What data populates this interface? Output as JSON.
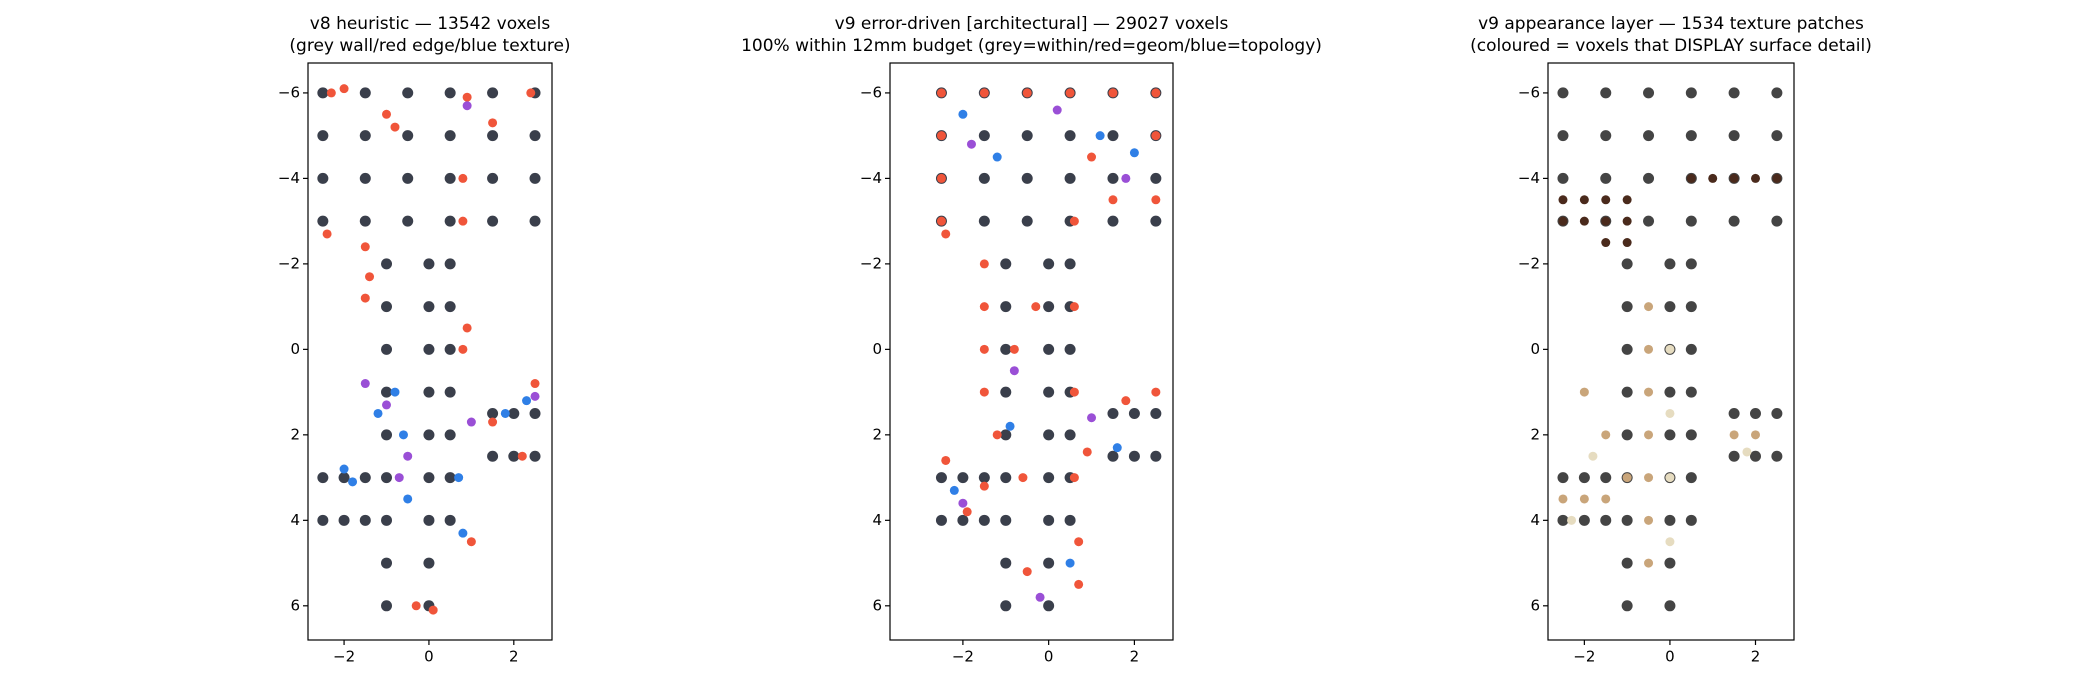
{
  "chart_data": [
    {
      "type": "scatter",
      "title": "v8 heuristic — 13542 voxels",
      "subtitle": "(grey wall/red edge/blue texture)",
      "xlim": [
        -2.85,
        2.9
      ],
      "ylim": [
        -6.7,
        6.8
      ],
      "y_inverted": true,
      "xticks": [
        {
          "value": -2,
          "label": "−2"
        },
        0,
        2
      ],
      "yticks": [
        {
          "value": -6,
          "label": "−6"
        },
        {
          "value": -4,
          "label": "−4"
        },
        {
          "value": -2,
          "label": "−2"
        },
        0,
        2,
        4,
        6
      ],
      "series": [
        {
          "color": "#3a3f4b",
          "x": [
            -2.5,
            -1.5,
            -0.5,
            0.5,
            1.5,
            2.5,
            -2.5,
            -1.5,
            -0.5,
            0.5,
            1.5,
            2.5,
            -2.5,
            -1.5,
            -0.5,
            0.5,
            1.5,
            2.5,
            -2.5,
            -1.5,
            -0.5,
            0.5,
            1.5,
            2.5,
            -1,
            -1,
            -1,
            -1,
            -1,
            -1,
            -1,
            -1,
            -1,
            0,
            0,
            0,
            0,
            0,
            0,
            0,
            0,
            0,
            0.5,
            0.5,
            0.5,
            0.5,
            0.5,
            0.5,
            0.5,
            -2.5,
            -2,
            -1.5,
            -2.5,
            -2,
            -1.5,
            1.5,
            2,
            2.5,
            1.5,
            2,
            2.5
          ],
          "y": [
            -6,
            -6,
            -6,
            -6,
            -6,
            -6,
            -5,
            -5,
            -5,
            -5,
            -5,
            -5,
            -4,
            -4,
            -4,
            -4,
            -4,
            -4,
            -3,
            -3,
            -3,
            -3,
            -3,
            -3,
            -2,
            -1,
            0,
            1,
            2,
            3,
            4,
            5,
            6,
            -2,
            -1,
            0,
            1,
            2,
            3,
            4,
            5,
            6,
            -2,
            -1,
            0,
            1,
            2,
            3,
            4,
            3,
            3,
            3,
            4,
            4,
            4,
            1.5,
            1.5,
            1.5,
            2.5,
            2.5,
            2.5
          ]
        },
        {
          "color": "#f0553a",
          "x": [
            -2.3,
            -2,
            -1,
            -0.8,
            0.9,
            1.5,
            2.4,
            0.8,
            0.8,
            -2.4,
            -1.5,
            -1.4,
            -1.5,
            0.8,
            0.9,
            1.5,
            2.5,
            2.2,
            1,
            -0.3,
            0.1
          ],
          "y": [
            -6,
            -6.1,
            -5.5,
            -5.2,
            -5.9,
            -5.3,
            -6,
            -4,
            -3,
            -2.7,
            -2.4,
            -1.7,
            -1.2,
            0,
            -0.5,
            1.7,
            0.8,
            2.5,
            4.5,
            6,
            6.1
          ]
        },
        {
          "color": "#2f7fe6",
          "x": [
            -2,
            -1.8,
            -0.8,
            -0.6,
            -0.5,
            0.7,
            0.8,
            2.3,
            -1.2,
            1.8
          ],
          "y": [
            2.8,
            3.1,
            1,
            2,
            3.5,
            3,
            4.3,
            1.2,
            1.5,
            1.5
          ]
        },
        {
          "color": "#9a4fd6",
          "x": [
            -0.5,
            -0.7,
            -1,
            0.9,
            1,
            2.5,
            -1.5
          ],
          "y": [
            2.5,
            3,
            1.3,
            -5.7,
            1.7,
            1.1,
            0.8
          ]
        }
      ]
    },
    {
      "type": "scatter",
      "title": "v9 error-driven [architectural] — 29027 voxels",
      "subtitle": "100% within 12mm budget (grey=within/red=geom/blue=topology)",
      "xlim": [
        -3.7,
        2.9
      ],
      "ylim": [
        -6.7,
        6.8
      ],
      "y_inverted": true,
      "xticks": [
        {
          "value": -2,
          "label": "−2"
        },
        0,
        2
      ],
      "yticks": [
        {
          "value": -6,
          "label": "−6"
        },
        {
          "value": -4,
          "label": "−4"
        },
        {
          "value": -2,
          "label": "−2"
        },
        0,
        2,
        4,
        6
      ],
      "series": [
        {
          "color": "#3a3f4b",
          "x": [
            -2.5,
            -1.5,
            -0.5,
            0.5,
            1.5,
            2.5,
            -2.5,
            -1.5,
            -0.5,
            0.5,
            1.5,
            2.5,
            -2.5,
            -1.5,
            -0.5,
            0.5,
            1.5,
            2.5,
            -2.5,
            -1.5,
            -0.5,
            0.5,
            1.5,
            2.5,
            -1,
            -1,
            -1,
            -1,
            -1,
            -1,
            -1,
            -1,
            -1,
            0,
            0,
            0,
            0,
            0,
            0,
            0,
            0,
            0,
            0.5,
            0.5,
            0.5,
            0.5,
            0.5,
            0.5,
            0.5,
            -2.5,
            -2,
            -1.5,
            -2.5,
            -2,
            -1.5,
            1.5,
            2,
            2.5,
            1.5,
            2,
            2.5
          ],
          "y": [
            -6,
            -6,
            -6,
            -6,
            -6,
            -6,
            -5,
            -5,
            -5,
            -5,
            -5,
            -5,
            -4,
            -4,
            -4,
            -4,
            -4,
            -4,
            -3,
            -3,
            -3,
            -3,
            -3,
            -3,
            -2,
            -1,
            0,
            1,
            2,
            3,
            4,
            5,
            6,
            -2,
            -1,
            0,
            1,
            2,
            3,
            4,
            5,
            6,
            -2,
            -1,
            0,
            1,
            2,
            3,
            4,
            3,
            3,
            3,
            4,
            4,
            4,
            1.5,
            1.5,
            1.5,
            2.5,
            2.5,
            2.5
          ]
        },
        {
          "color": "#f0553a",
          "x": [
            -2.5,
            -1.5,
            -0.5,
            0.5,
            1.5,
            2.5,
            -2.5,
            -2.5,
            -2.5,
            -2.4,
            -1.5,
            -1.5,
            -1.5,
            -1.5,
            -1.2,
            -0.6,
            0.6,
            0.6,
            0.6,
            0.6,
            0.7,
            0.7,
            1.5,
            2.5,
            2.5,
            1,
            1.8,
            2.5,
            -2.4,
            -1.9,
            -1.5,
            -0.8,
            -0.3,
            0.9,
            -0.5
          ],
          "y": [
            -6,
            -6,
            -6,
            -6,
            -6,
            -6,
            -5,
            -4,
            -3,
            -2.7,
            -2,
            -1,
            0,
            1,
            2,
            3,
            -3,
            -1,
            1,
            3,
            4.5,
            5.5,
            -3.5,
            -3.5,
            -5,
            -4.5,
            1.2,
            1,
            2.6,
            3.8,
            3.2,
            0,
            -1,
            2.4,
            5.2
          ]
        },
        {
          "color": "#2f7fe6",
          "x": [
            -2,
            -1.2,
            1.2,
            2,
            -0.9,
            0.5,
            -2.2,
            1.6
          ],
          "y": [
            -5.5,
            -4.5,
            -5,
            -4.6,
            1.8,
            5,
            3.3,
            2.3
          ]
        },
        {
          "color": "#9a4fd6",
          "x": [
            -1.8,
            0.2,
            1.8,
            -0.8,
            -2,
            -0.2,
            1
          ],
          "y": [
            -4.8,
            -5.6,
            -4,
            0.5,
            3.6,
            5.8,
            1.6
          ]
        }
      ]
    },
    {
      "type": "scatter",
      "title": "v9 appearance layer — 1534 texture patches",
      "subtitle": "(coloured = voxels that DISPLAY surface detail)",
      "xlim": [
        -2.85,
        2.9
      ],
      "ylim": [
        -6.7,
        6.8
      ],
      "y_inverted": true,
      "xticks": [
        {
          "value": -2,
          "label": "−2"
        },
        0,
        2
      ],
      "yticks": [
        {
          "value": -6,
          "label": "−6"
        },
        {
          "value": -4,
          "label": "−4"
        },
        {
          "value": -2,
          "label": "−2"
        },
        0,
        2,
        4,
        6
      ],
      "series": [
        {
          "color": "#444444",
          "x": [
            -2.5,
            -1.5,
            -0.5,
            0.5,
            1.5,
            2.5,
            -2.5,
            -1.5,
            -0.5,
            0.5,
            1.5,
            2.5,
            -2.5,
            -1.5,
            -0.5,
            0.5,
            1.5,
            2.5,
            -2.5,
            -1.5,
            -0.5,
            0.5,
            1.5,
            2.5,
            -1,
            -1,
            -1,
            -1,
            -1,
            -1,
            -1,
            -1,
            -1,
            0,
            0,
            0,
            0,
            0,
            0,
            0,
            0,
            0,
            0.5,
            0.5,
            0.5,
            0.5,
            0.5,
            0.5,
            0.5,
            -2.5,
            -2,
            -1.5,
            -2.5,
            -2,
            -1.5,
            1.5,
            2,
            2.5,
            1.5,
            2,
            2.5
          ],
          "y": [
            -6,
            -6,
            -6,
            -6,
            -6,
            -6,
            -5,
            -5,
            -5,
            -5,
            -5,
            -5,
            -4,
            -4,
            -4,
            -4,
            -4,
            -4,
            -3,
            -3,
            -3,
            -3,
            -3,
            -3,
            -2,
            -1,
            0,
            1,
            2,
            3,
            4,
            5,
            6,
            -2,
            -1,
            0,
            1,
            2,
            3,
            4,
            5,
            6,
            -2,
            -1,
            0,
            1,
            2,
            3,
            4,
            3,
            3,
            3,
            4,
            4,
            4,
            1.5,
            1.5,
            1.5,
            2.5,
            2.5,
            2.5
          ]
        },
        {
          "color": "#4a2a1c",
          "x": [
            -2.5,
            -2,
            -1.5,
            -1,
            -2.5,
            -2,
            -1.5,
            -1,
            -1.5,
            -1,
            0.5,
            1,
            1.5,
            2,
            2.5
          ],
          "y": [
            -3.5,
            -3.5,
            -3.5,
            -3.5,
            -3,
            -3,
            -3,
            -3,
            -2.5,
            -2.5,
            -4,
            -4,
            -4,
            -4,
            -4
          ]
        },
        {
          "color": "#c9a57a",
          "x": [
            -0.5,
            -0.5,
            -0.5,
            -0.5,
            -0.5,
            -0.5,
            -0.5,
            -2.5,
            -2,
            -1.5,
            -1,
            -2,
            -1.5,
            2,
            1.5
          ],
          "y": [
            -1,
            0,
            1,
            2,
            3,
            4,
            5,
            3.5,
            3.5,
            3.5,
            3,
            1,
            2,
            2,
            2
          ]
        },
        {
          "color": "#e6dcc0",
          "x": [
            0,
            0,
            0,
            0,
            -1.8,
            -2.3,
            1.8
          ],
          "y": [
            0,
            1.5,
            3,
            4.5,
            2.5,
            4,
            2.4
          ]
        }
      ]
    }
  ]
}
